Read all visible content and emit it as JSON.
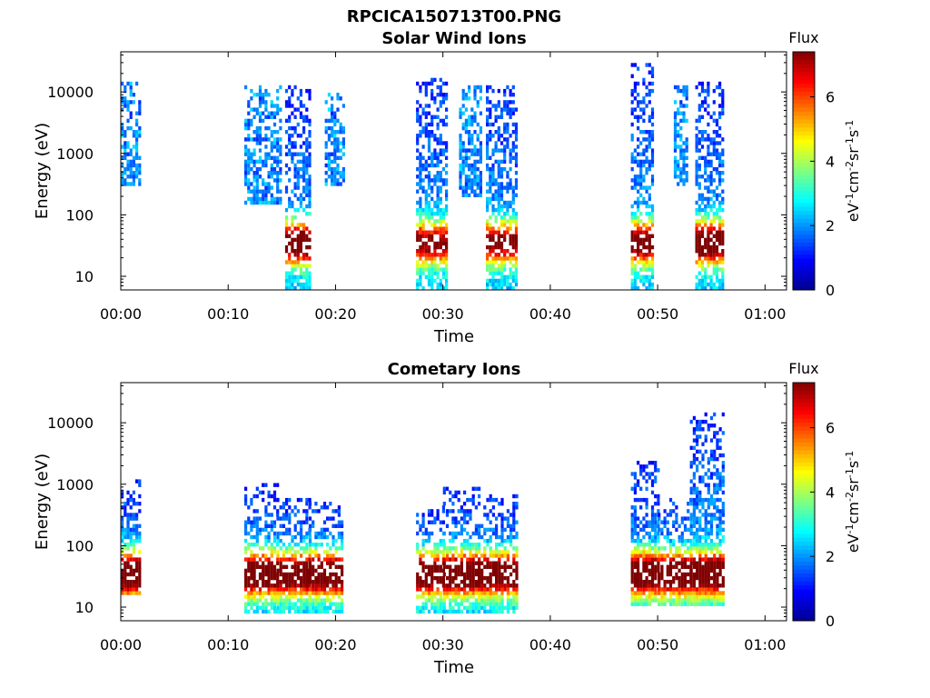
{
  "figure_title": "RPCICA150713T00.PNG",
  "colors": {
    "colormap": [
      "#00008f",
      "#0000ff",
      "#007fff",
      "#00ffff",
      "#7fff7f",
      "#ffff00",
      "#ff7f00",
      "#ff0000",
      "#7f0000"
    ],
    "background": "#ffffff"
  },
  "chart_data": [
    {
      "type": "heatmap",
      "title": "Solar Wind Ions",
      "xlabel": "Time",
      "ylabel": "Energy (eV)",
      "y_scale": "log",
      "x_ticks": [
        "00:00",
        "00:10",
        "00:20",
        "00:30",
        "00:40",
        "00:50",
        "01:00"
      ],
      "y_ticks": [
        "10",
        "100",
        "1000",
        "10000"
      ],
      "ylim": [
        6,
        45000
      ],
      "xlim_minutes": [
        0,
        62
      ],
      "colorbar": {
        "label": "Flux",
        "units": "eV-1cm-2sr-1s-1",
        "ticks": [
          "0",
          "2",
          "4",
          "6"
        ],
        "range": [
          0,
          7.4
        ]
      },
      "bursts": [
        {
          "start_min": 0.0,
          "end_min": 1.7,
          "emin": 300,
          "emax": 15000,
          "peak_flux": 2.0
        },
        {
          "start_min": 11.5,
          "end_min": 14.8,
          "emin": 150,
          "emax": 12000,
          "peak_flux": 2.0
        },
        {
          "start_min": 15.3,
          "end_min": 17.5,
          "emin": 6,
          "emax": 13000,
          "peak_flux": 6.5
        },
        {
          "start_min": 19.0,
          "end_min": 20.7,
          "emin": 300,
          "emax": 10000,
          "peak_flux": 2.0
        },
        {
          "start_min": 27.5,
          "end_min": 30.2,
          "emin": 6,
          "emax": 18000,
          "peak_flux": 5.5
        },
        {
          "start_min": 31.5,
          "end_min": 33.5,
          "emin": 200,
          "emax": 12000,
          "peak_flux": 2.0
        },
        {
          "start_min": 34.0,
          "end_min": 36.8,
          "emin": 6,
          "emax": 12000,
          "peak_flux": 5.5
        },
        {
          "start_min": 47.5,
          "end_min": 49.5,
          "emin": 6,
          "emax": 30000,
          "peak_flux": 6.0
        },
        {
          "start_min": 51.5,
          "end_min": 52.7,
          "emin": 300,
          "emax": 12000,
          "peak_flux": 2.0
        },
        {
          "start_min": 53.5,
          "end_min": 56.0,
          "emin": 6,
          "emax": 15000,
          "peak_flux": 6.5
        }
      ]
    },
    {
      "type": "heatmap",
      "title": "Cometary Ions",
      "xlabel": "Time",
      "ylabel": "Energy (eV)",
      "y_scale": "log",
      "x_ticks": [
        "00:00",
        "00:10",
        "00:20",
        "00:30",
        "00:40",
        "00:50",
        "01:00"
      ],
      "y_ticks": [
        "10",
        "100",
        "1000",
        "10000"
      ],
      "ylim": [
        6,
        45000
      ],
      "xlim_minutes": [
        0,
        62
      ],
      "colorbar": {
        "label": "Flux",
        "units": "eV-1cm-2sr-1s-1",
        "ticks": [
          "0",
          "2",
          "4",
          "6"
        ],
        "range": [
          0,
          7.4
        ]
      },
      "bursts": [
        {
          "start_min": 0.0,
          "end_min": 1.7,
          "emin": 15,
          "emax": 1200,
          "peak_flux": 7.2
        },
        {
          "start_min": 11.5,
          "end_min": 14.5,
          "emin": 8,
          "emax": 1000,
          "peak_flux": 7.2
        },
        {
          "start_min": 14.5,
          "end_min": 17.5,
          "emin": 8,
          "emax": 600,
          "peak_flux": 7.0
        },
        {
          "start_min": 17.5,
          "end_min": 20.7,
          "emin": 8,
          "emax": 500,
          "peak_flux": 7.2
        },
        {
          "start_min": 27.5,
          "end_min": 30.0,
          "emin": 8,
          "emax": 450,
          "peak_flux": 7.0
        },
        {
          "start_min": 30.0,
          "end_min": 33.5,
          "emin": 8,
          "emax": 900,
          "peak_flux": 7.2
        },
        {
          "start_min": 33.5,
          "end_min": 36.8,
          "emin": 8,
          "emax": 800,
          "peak_flux": 7.0
        },
        {
          "start_min": 47.5,
          "end_min": 50.0,
          "emin": 10,
          "emax": 2500,
          "peak_flux": 7.2
        },
        {
          "start_min": 50.0,
          "end_min": 53.0,
          "emin": 10,
          "emax": 600,
          "peak_flux": 7.2
        },
        {
          "start_min": 53.0,
          "end_min": 56.0,
          "emin": 10,
          "emax": 15000,
          "peak_flux": 7.0
        }
      ]
    }
  ]
}
